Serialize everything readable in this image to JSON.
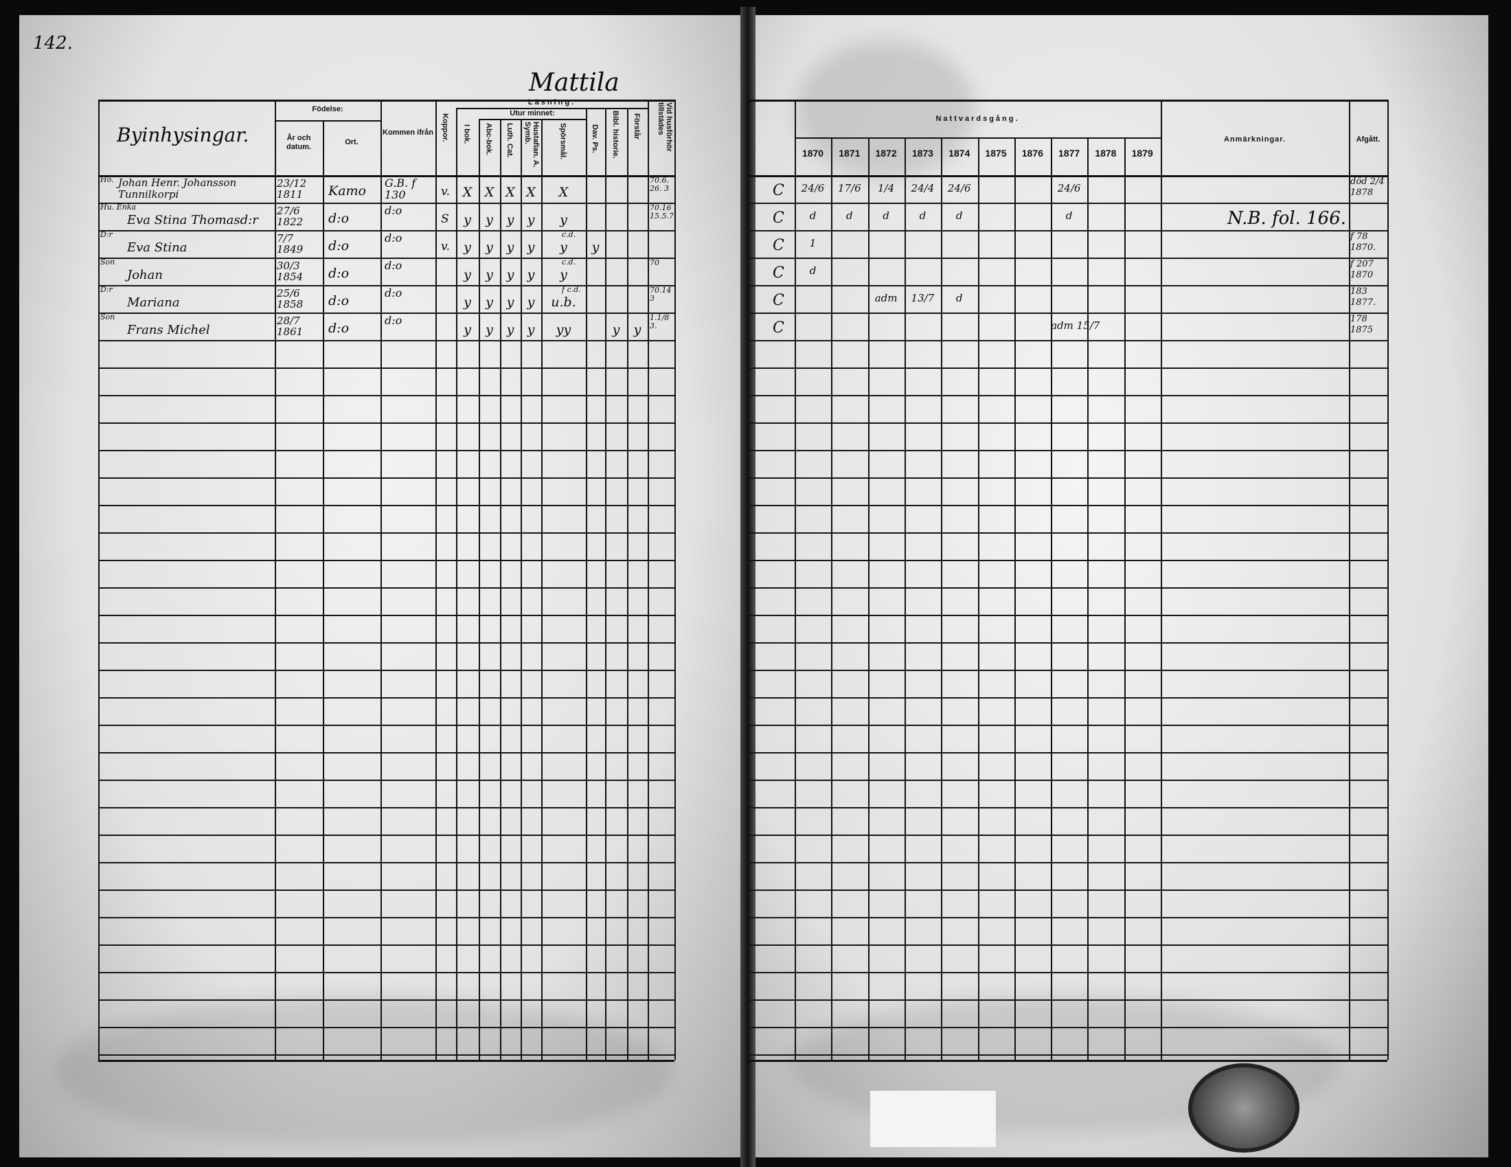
{
  "page_number": "142.",
  "village_heading": "Mattila",
  "left_header": {
    "section_title": "Byinhysingar.",
    "fodelse": "Födelse:",
    "ar_datum": "År och datum.",
    "ort": "Ort.",
    "kommen": "Kommen ifrån",
    "koppor": "Koppor.",
    "lasning": "Läsning.",
    "utur_minnet": "Utur minnet:",
    "i_bok": "I bok.",
    "abc": "Abc-bok.",
    "luth": "Luth. Cat.",
    "hust": "Hustafian. A. Symb.",
    "spors": "Spörsmål.",
    "dav": "Dav. Ps.",
    "bibl": "Bibl. historie.",
    "forstar": "Förstår",
    "vid": "Vid husförhör tillstädes"
  },
  "right_header": {
    "nattvard": "Nattvardsgång.",
    "years": [
      "1870",
      "1871",
      "1872",
      "1873",
      "1874",
      "1875",
      "1876",
      "1877",
      "1878",
      "1879"
    ],
    "anm": "Anmärkningar.",
    "afgatt": "Afgått."
  },
  "entries": [
    {
      "prefix": "Ho.",
      "name": "Johan Henr. Johansson Tunnilkorpi",
      "birth": "23/12 1811",
      "ort": "Kamo",
      "kommen": "G.B. f 130",
      "koppor": "v.",
      "marks": [
        "X",
        "X",
        "X",
        "X",
        "X",
        "",
        "",
        ""
      ],
      "note": "",
      "vid": "70.6. 26. 3",
      "letter": "C",
      "years": [
        "24/6",
        "17/6",
        "1/4",
        "24/4",
        "24/6",
        "",
        "",
        "24/6",
        "",
        ""
      ],
      "anm": "",
      "afgatt": "död 2/4 1878"
    },
    {
      "prefix": "Hu. Enka",
      "name": "Eva Stina Thomasd:r",
      "birth": "27/6 1822",
      "ort": "d:o",
      "kommen": "d:o",
      "koppor": "S",
      "marks": [
        "y",
        "y",
        "y",
        "y",
        "y",
        "",
        "",
        ""
      ],
      "note": "",
      "vid": "70.16 15.5.7",
      "letter": "C",
      "years": [
        "d",
        "d",
        "d",
        "d",
        "d",
        "",
        "",
        "d",
        "",
        ""
      ],
      "anm": "N.B. fol. 166.",
      "afgatt": ""
    },
    {
      "prefix": "D:r",
      "name": "Eva Stina",
      "birth": "7/7 1849",
      "ort": "d:o",
      "kommen": "d:o",
      "koppor": "v.",
      "marks": [
        "y",
        "y",
        "y",
        "y",
        "y",
        "y",
        "",
        ""
      ],
      "note": "c.d.",
      "vid": "",
      "letter": "C",
      "years": [
        "1",
        "",
        "",
        "",
        "",
        "",
        "",
        "",
        "",
        ""
      ],
      "anm": "",
      "afgatt": "f 78 1870."
    },
    {
      "prefix": "Son",
      "name": "Johan",
      "birth": "30/3 1854",
      "ort": "d:o",
      "kommen": "d:o",
      "koppor": "",
      "marks": [
        "y",
        "y",
        "y",
        "y",
        "y",
        "",
        "",
        ""
      ],
      "note": "c.d.",
      "vid": "70",
      "letter": "C",
      "years": [
        "d",
        "",
        "",
        "",
        "",
        "",
        "",
        "",
        "",
        ""
      ],
      "anm": "",
      "afgatt": "f 207 1870"
    },
    {
      "prefix": "D:r",
      "name": "Mariana",
      "birth": "25/6 1858",
      "ort": "d:o",
      "kommen": "d:o",
      "koppor": "",
      "marks": [
        "y",
        "y",
        "y",
        "y",
        "u.b.",
        "",
        "",
        ""
      ],
      "note": "f c.d.",
      "vid": "70.14 3",
      "letter": "C",
      "years": [
        "",
        "",
        "adm",
        "13/7",
        "d",
        "",
        "",
        "",
        "",
        ""
      ],
      "anm": "",
      "afgatt": "183 1877."
    },
    {
      "prefix": "Son",
      "name": "Frans Michel",
      "birth": "28/7 1861",
      "ort": "d:o",
      "kommen": "d:o",
      "koppor": "",
      "marks": [
        "y",
        "y",
        "y",
        "y",
        "yy",
        "",
        "y",
        "y"
      ],
      "note": "",
      "vid": "1.1/8 3.",
      "letter": "C",
      "years": [
        "",
        "",
        "",
        "",
        "",
        "",
        "",
        "adm 15/7",
        "",
        ""
      ],
      "anm": "",
      "afgatt": "178 1875"
    }
  ],
  "colors": {
    "ink": "#111111",
    "paper": "#eeeeec",
    "border": "#0a0a0a"
  }
}
